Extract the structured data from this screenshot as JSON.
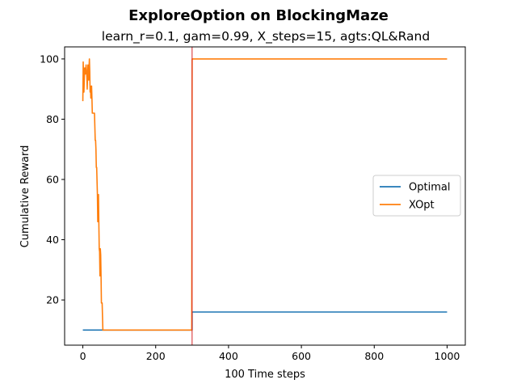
{
  "chart_data": {
    "type": "line",
    "title": "ExploreOption on BlockingMaze",
    "subtitle": "learn_r=0.1, gam=0.99, X_steps=15, agts:QL&Rand",
    "xlabel": "100 Time steps",
    "ylabel": "Cumulative Reward",
    "xlim": [
      -50,
      1050
    ],
    "ylim": [
      5,
      104
    ],
    "x_ticks": [
      0,
      200,
      400,
      600,
      800,
      1000
    ],
    "y_ticks": [
      20,
      40,
      60,
      80,
      100
    ],
    "grid": false,
    "legend_position": "center-right",
    "vline": {
      "x": 300,
      "color": "#d62728"
    },
    "series": [
      {
        "name": "Optimal",
        "color": "#1f77b4",
        "points": [
          [
            0,
            10
          ],
          [
            300,
            10
          ],
          [
            300,
            16
          ],
          [
            1000,
            16
          ]
        ]
      },
      {
        "name": "XOpt",
        "color": "#ff7f0e",
        "points": [
          [
            0,
            86
          ],
          [
            1,
            99
          ],
          [
            3,
            89
          ],
          [
            5,
            97
          ],
          [
            7,
            95
          ],
          [
            9,
            98
          ],
          [
            11,
            94
          ],
          [
            12,
            90
          ],
          [
            14,
            98
          ],
          [
            16,
            93
          ],
          [
            17,
            97
          ],
          [
            18,
            100
          ],
          [
            19,
            96
          ],
          [
            20,
            89
          ],
          [
            21,
            91
          ],
          [
            22,
            87
          ],
          [
            24,
            91
          ],
          [
            25,
            87
          ],
          [
            26,
            82
          ],
          [
            28,
            82
          ],
          [
            30,
            82
          ],
          [
            32,
            82
          ],
          [
            34,
            73
          ],
          [
            35,
            73
          ],
          [
            36,
            70
          ],
          [
            37,
            64
          ],
          [
            38,
            64
          ],
          [
            40,
            55
          ],
          [
            41,
            46
          ],
          [
            42,
            52
          ],
          [
            43,
            55
          ],
          [
            44,
            45
          ],
          [
            45,
            37
          ],
          [
            46,
            36
          ],
          [
            47,
            28
          ],
          [
            48,
            37
          ],
          [
            49,
            35
          ],
          [
            50,
            28
          ],
          [
            51,
            19
          ],
          [
            53,
            19
          ],
          [
            55,
            10
          ],
          [
            60,
            10
          ],
          [
            100,
            10
          ],
          [
            200,
            10
          ],
          [
            299,
            10
          ],
          [
            300,
            100
          ],
          [
            1000,
            100
          ]
        ]
      }
    ]
  }
}
